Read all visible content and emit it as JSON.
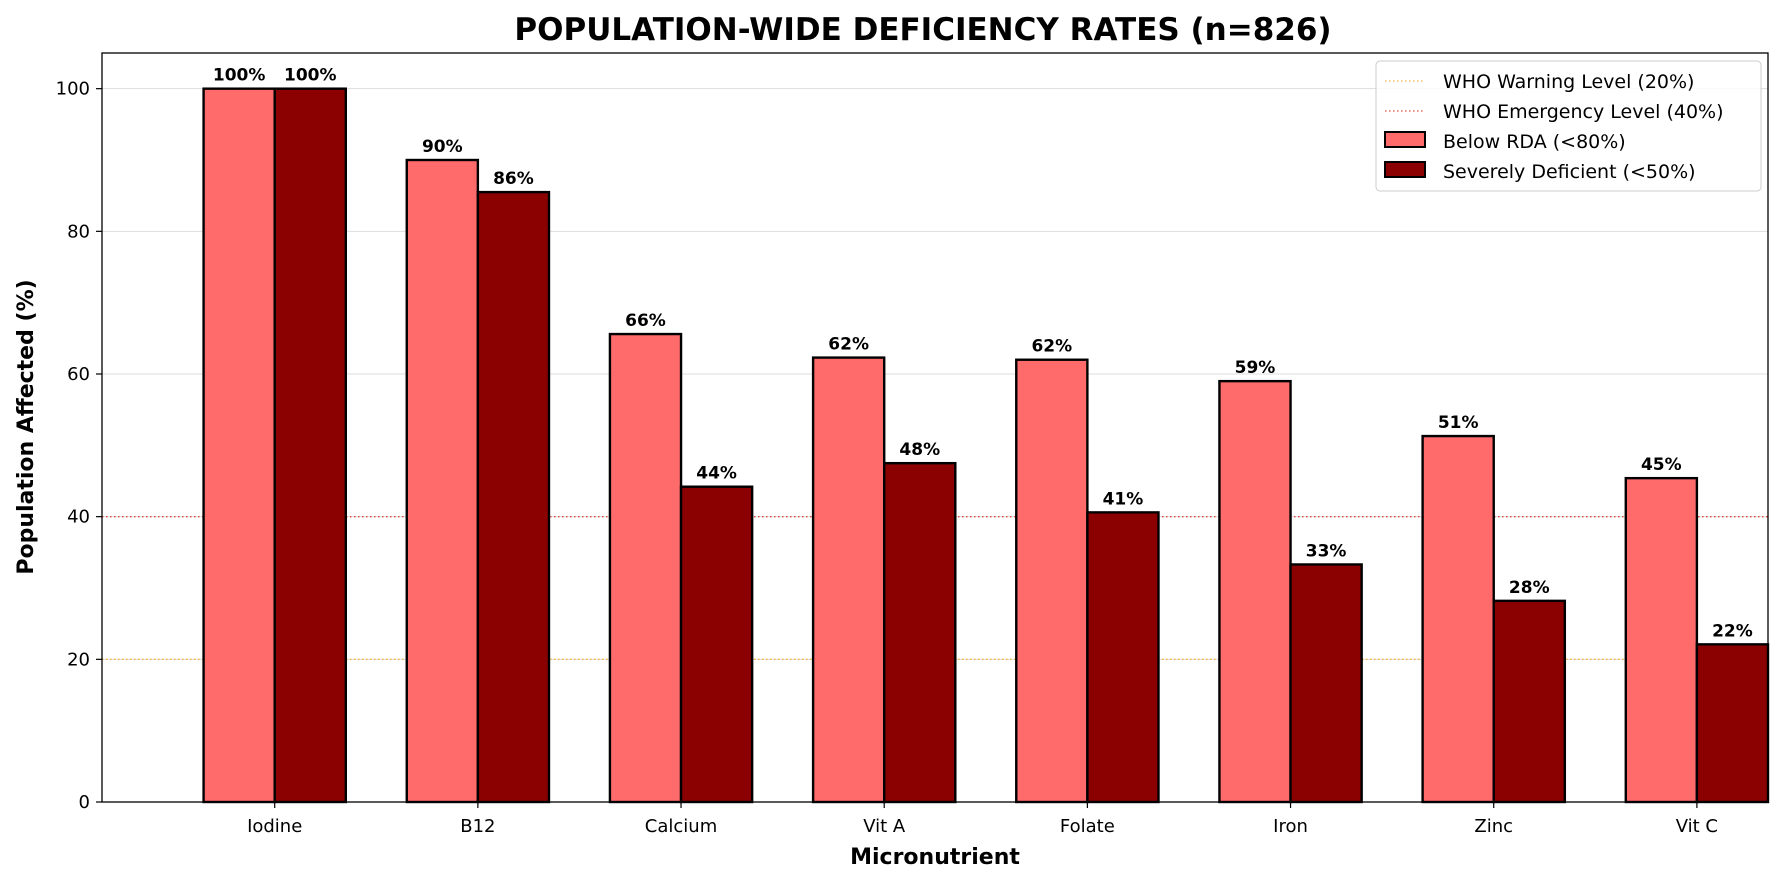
{
  "chart_data": {
    "type": "bar",
    "title": "POPULATION-WIDE DEFICIENCY RATES (n=826)",
    "xlabel": "Micronutrient",
    "ylabel": "Population Affected (%)",
    "ylim": [
      0,
      105
    ],
    "yticks": [
      "0",
      "20",
      "40",
      "60",
      "80",
      "100"
    ],
    "categories": [
      "Iodine",
      "B12",
      "Calcium",
      "Vit A",
      "Folate",
      "Iron",
      "Zinc",
      "Vit C"
    ],
    "series": [
      {
        "name": "Below RDA (<80%)",
        "color": "#ff6b6b",
        "values": [
          100,
          90,
          65.6,
          62.3,
          62.0,
          59.0,
          51.3,
          45.4
        ],
        "labels": [
          "100%",
          "90%",
          "66%",
          "62%",
          "62%",
          "59%",
          "51%",
          "45%"
        ]
      },
      {
        "name": "Severely Deficient (<50%)",
        "color": "#8b0000",
        "values": [
          100,
          85.5,
          44.2,
          47.5,
          40.6,
          33.3,
          28.2,
          22.1
        ],
        "labels": [
          "100%",
          "86%",
          "44%",
          "48%",
          "41%",
          "33%",
          "28%",
          "22%"
        ]
      }
    ],
    "reference_lines": [
      {
        "name": "WHO Warning Level (20%)",
        "value": 20,
        "color": "#f5b342",
        "style": "dotted"
      },
      {
        "name": "WHO Emergency Level (40%)",
        "value": 40,
        "color": "#e74c3c",
        "style": "dotted"
      }
    ],
    "legend": {
      "placement": "top-right",
      "items": [
        "WHO Warning Level (20%)",
        "WHO Emergency Level (40%)",
        "Below RDA (<80%)",
        "Severely Deficient (<50%)"
      ]
    },
    "grid": "horizontal"
  }
}
